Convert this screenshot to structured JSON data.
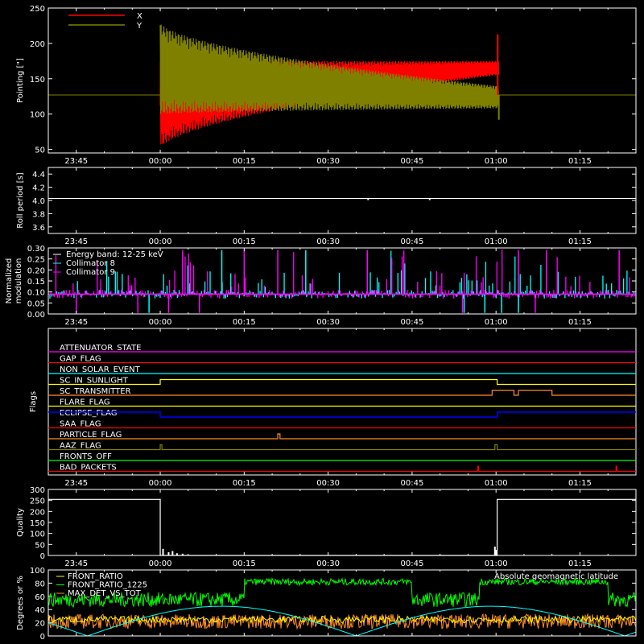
{
  "time_ticks": [
    "23:45",
    "00:00",
    "00:15",
    "00:30",
    "00:45",
    "01:00",
    "01:15"
  ],
  "panels": {
    "pointing": {
      "ylabel": "Pointing [\"]",
      "ylim": [
        45,
        250
      ],
      "yticks": [
        50,
        100,
        150,
        200,
        250
      ],
      "legend": [
        {
          "label": "X",
          "color": "#ff0000"
        },
        {
          "label": "Y",
          "color": "#808000"
        }
      ]
    },
    "roll": {
      "ylabel": "Roll period [s]",
      "ylim": [
        3.5,
        4.5
      ],
      "yticks": [
        "3.6",
        "3.8",
        "4.0",
        "4.2",
        "4.4"
      ]
    },
    "modulation": {
      "ylabel1": "Normalized",
      "ylabel2": "modulation",
      "ylim": [
        0,
        0.3
      ],
      "yticks": [
        "0.00",
        "0.05",
        "0.10",
        "0.15",
        "0.20",
        "0.25",
        "0.30"
      ],
      "legend": [
        {
          "label": "Energy band: 12-25 keV",
          "color": "#ffffff"
        },
        {
          "label": "Collimator 8",
          "color": "#00ffff"
        },
        {
          "label": "Collimator 9",
          "color": "#ff00ff"
        }
      ]
    },
    "flags": {
      "ylabel": "Flags",
      "items": [
        {
          "label": "ATTENUATOR_STATE",
          "color": "#ff00ff"
        },
        {
          "label": "GAP_FLAG",
          "color": "#ff0000"
        },
        {
          "label": "NON_SOLAR_EVENT",
          "color": "#00ffff"
        },
        {
          "label": "SC_IN_SUNLIGHT",
          "color": "#ffff00"
        },
        {
          "label": "SC_TRANSMITTER",
          "color": "#ff8c28"
        },
        {
          "label": "FLARE_FLAG",
          "color": "#ffff00"
        },
        {
          "label": "ECLIPSE_FLAG",
          "color": "#0000ff"
        },
        {
          "label": "SAA_FLAG",
          "color": "#ff0000"
        },
        {
          "label": "PARTICLE_FLAG",
          "color": "#ff8c28"
        },
        {
          "label": "AAZ_FLAG",
          "color": "#808000"
        },
        {
          "label": "FRONTS_OFF",
          "color": "#00ff00"
        },
        {
          "label": "BAD_PACKETS",
          "color": "#ff0000"
        }
      ]
    },
    "quality": {
      "ylabel": "Quality",
      "ylim": [
        0,
        300
      ],
      "yticks": [
        0,
        50,
        100,
        150,
        200,
        250,
        300
      ]
    },
    "ratios": {
      "ylabel": "Degrees or %",
      "ylim": [
        0,
        100
      ],
      "yticks": [
        0,
        20,
        40,
        60,
        80,
        100
      ],
      "legend": [
        {
          "label": "FRONT_RATIO",
          "color": "#ffff00"
        },
        {
          "label": "FRONT_RATIO_1225",
          "color": "#00ff00"
        },
        {
          "label": "MAX_DET_VS_TOT",
          "color": "#ff8c28"
        }
      ],
      "legend_right": {
        "label": "Absolute geomagnetic latitude",
        "color": "#00ffff"
      }
    }
  },
  "chart_data": [
    {
      "type": "line",
      "title": "",
      "xlabel": "",
      "ylabel": "Pointing [\"]",
      "x_range": [
        "23:40",
        "01:25"
      ],
      "ylim": [
        45,
        250
      ],
      "series": [
        {
          "name": "X",
          "values_summary": {
            "before_00:00": 127,
            "oscillation_center": 130,
            "envelope_at_00:00": [
              50,
              175
            ],
            "envelope_at_01:00": [
              155,
              175
            ],
            "after_01:00": 127
          }
        },
        {
          "name": "Y",
          "values_summary": {
            "before_00:00": 127,
            "oscillation_center": 130,
            "envelope_at_00:00": [
              100,
              230
            ],
            "envelope_at_01:00": [
              105,
              140
            ],
            "after_01:00": 127
          }
        }
      ]
    },
    {
      "type": "line",
      "ylabel": "Roll period [s]",
      "ylim": [
        3.5,
        4.5
      ],
      "series": [
        {
          "values_summary": {
            "constant": 4.03
          }
        }
      ]
    },
    {
      "type": "bar",
      "ylabel": "Normalized modulation",
      "ylim": [
        0,
        0.3
      ],
      "series": [
        {
          "name": "Collimator 8",
          "values_summary": {
            "baseline": 0.09,
            "max": 0.3
          }
        },
        {
          "name": "Collimator 9",
          "values_summary": {
            "baseline": 0.09,
            "max": 0.3
          }
        }
      ]
    },
    {
      "type": "line",
      "ylabel": "Flags",
      "series": [
        {
          "name": "SC_IN_SUNLIGHT",
          "on_intervals": [
            [
              "00:00",
              "01:00"
            ]
          ]
        },
        {
          "name": "ECLIPSE_FLAG",
          "on_intervals": [
            [
              "23:40",
              "00:00"
            ],
            [
              "01:00",
              "01:25"
            ]
          ]
        },
        {
          "name": "SC_TRANSMITTER",
          "on_intervals": [
            [
              "00:59",
              "01:03"
            ],
            [
              "01:04",
              "01:10"
            ]
          ]
        },
        {
          "name": "PARTICLE_FLAG",
          "on_intervals": [
            [
              "00:21",
              "00:21"
            ]
          ]
        },
        {
          "name": "AAZ_FLAG",
          "on_intervals": [
            [
              "00:00",
              "00:00"
            ],
            [
              "01:00",
              "01:00"
            ]
          ]
        },
        {
          "name": "BAD_PACKETS",
          "on_intervals": [
            [
              "00:56",
              "00:56"
            ],
            [
              "01:20",
              "01:20"
            ]
          ]
        }
      ]
    },
    {
      "type": "line",
      "ylabel": "Quality",
      "ylim": [
        0,
        300
      ],
      "series": [
        {
          "values_summary": {
            "before_00:00": 255,
            "00:00_to_01:00": 0,
            "after_01:00": 255
          }
        }
      ]
    },
    {
      "type": "line",
      "ylabel": "Degrees or %",
      "ylim": [
        0,
        100
      ],
      "series": [
        {
          "name": "FRONT_RATIO",
          "values_summary": {
            "mean": 25
          }
        },
        {
          "name": "FRONT_RATIO_1225",
          "values_summary": {
            "low_level": 55,
            "high_level": 82,
            "high_intervals": [
              [
                "00:15",
                "00:45"
              ],
              [
                "00:57",
                "01:20"
              ]
            ]
          }
        },
        {
          "name": "MAX_DET_VS_TOT",
          "values_summary": {
            "mean": 22
          }
        },
        {
          "name": "Absolute geomagnetic latitude",
          "values_summary": {
            "min": 0,
            "max": 45
          }
        }
      ]
    }
  ]
}
